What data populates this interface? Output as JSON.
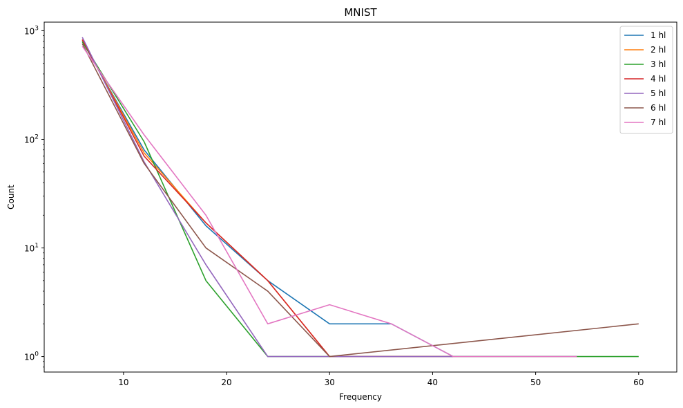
{
  "chart_data": {
    "type": "line",
    "title": "MNIST",
    "xlabel": "Frequency",
    "ylabel": "Count",
    "yscale": "log",
    "xlim": [
      2.3,
      63.7
    ],
    "ylim": [
      0.72,
      1200
    ],
    "xticks": [
      10,
      20,
      30,
      40,
      50,
      60
    ],
    "yticks": [
      {
        "value": 1,
        "base": "10",
        "exp": "0"
      },
      {
        "value": 10,
        "base": "10",
        "exp": "1"
      },
      {
        "value": 100,
        "base": "10",
        "exp": "2"
      },
      {
        "value": 1000,
        "base": "10",
        "exp": "3"
      }
    ],
    "grid": false,
    "legend_position": "top-right",
    "series": [
      {
        "name": "1 hl",
        "color": "#1f77b4",
        "x": [
          6,
          12,
          18,
          24,
          30,
          36,
          42,
          48,
          54
        ],
        "y": [
          800,
          80,
          16,
          5,
          2,
          2,
          1,
          1,
          1
        ]
      },
      {
        "name": "2 hl",
        "color": "#ff7f0e",
        "x": [
          6,
          12,
          18,
          24,
          30,
          36,
          42
        ],
        "y": [
          820,
          75,
          17,
          5,
          1,
          1,
          1
        ]
      },
      {
        "name": "3 hl",
        "color": "#2ca02c",
        "x": [
          6,
          12,
          18,
          24,
          30,
          36,
          42,
          48,
          54,
          60
        ],
        "y": [
          790,
          95,
          5,
          1,
          1,
          1,
          1,
          1,
          1,
          1
        ]
      },
      {
        "name": "4 hl",
        "color": "#d62728",
        "x": [
          6,
          12,
          18,
          24,
          30,
          36,
          42
        ],
        "y": [
          830,
          70,
          17,
          5,
          1,
          1,
          1
        ]
      },
      {
        "name": "5 hl",
        "color": "#9467bd",
        "x": [
          6,
          12,
          18,
          24,
          30,
          36,
          42
        ],
        "y": [
          870,
          62,
          7,
          1,
          1,
          1,
          1
        ]
      },
      {
        "name": "6 hl",
        "color": "#8c564b",
        "x": [
          6,
          12,
          18,
          24,
          30,
          60
        ],
        "y": [
          760,
          60,
          10,
          4,
          1,
          2
        ]
      },
      {
        "name": "7 hl",
        "color": "#e377c2",
        "x": [
          6,
          12,
          18,
          24,
          30,
          36,
          42,
          48,
          54
        ],
        "y": [
          720,
          110,
          20,
          2,
          3,
          2,
          1,
          1,
          1
        ]
      }
    ]
  }
}
